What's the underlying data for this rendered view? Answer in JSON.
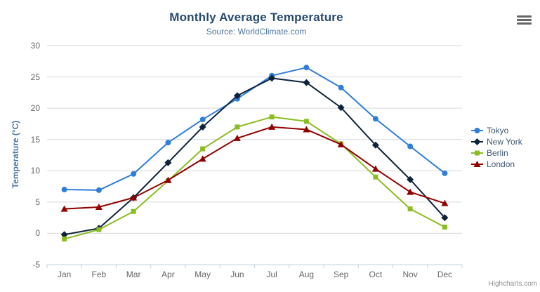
{
  "header": {
    "title": "Monthly Average Temperature",
    "subtitle": "Source: WorldClimate.com"
  },
  "chart_data": {
    "type": "line",
    "title": "Monthly Average Temperature",
    "subtitle": "Source: WorldClimate.com",
    "categories": [
      "Jan",
      "Feb",
      "Mar",
      "Apr",
      "May",
      "Jun",
      "Jul",
      "Aug",
      "Sep",
      "Oct",
      "Nov",
      "Dec"
    ],
    "series": [
      {
        "name": "Tokyo",
        "color": "#2f7ed8",
        "marker": "circle",
        "values": [
          7.0,
          6.9,
          9.5,
          14.5,
          18.2,
          21.5,
          25.2,
          26.5,
          23.3,
          18.3,
          13.9,
          9.6
        ]
      },
      {
        "name": "New York",
        "color": "#0d233a",
        "marker": "diamond",
        "values": [
          -0.2,
          0.8,
          5.7,
          11.3,
          17.0,
          22.0,
          24.8,
          24.1,
          20.1,
          14.1,
          8.6,
          2.5
        ]
      },
      {
        "name": "Berlin",
        "color": "#8bbc21",
        "marker": "square",
        "values": [
          -0.9,
          0.6,
          3.5,
          8.4,
          13.5,
          17.0,
          18.6,
          17.9,
          14.3,
          9.0,
          3.9,
          1.0
        ]
      },
      {
        "name": "London",
        "color": "#910000",
        "marker": "triangle",
        "values": [
          3.9,
          4.2,
          5.7,
          8.5,
          11.9,
          15.2,
          17.0,
          16.6,
          14.2,
          10.3,
          6.6,
          4.8
        ]
      }
    ],
    "xlabel": "",
    "ylabel": "Temperature (°C)",
    "ylim": [
      -5,
      30
    ],
    "y_ticks": [
      -5,
      0,
      5,
      10,
      15,
      20,
      25,
      30
    ],
    "grid": true,
    "legend_position": "right",
    "grid_color": "#d8d8d8",
    "axis_line_color": "#c0d0e0"
  },
  "credits": {
    "label": "Highcharts.com"
  },
  "icons": {
    "export_menu": "hamburger"
  }
}
